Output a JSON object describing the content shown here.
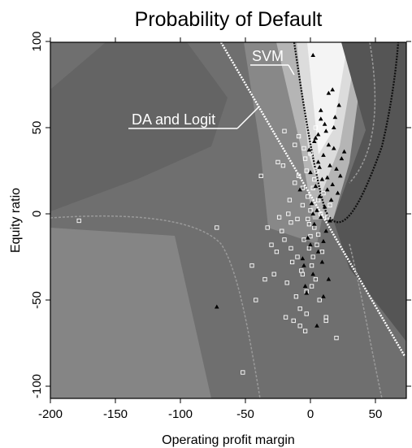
{
  "chart_data": {
    "type": "scatter",
    "title": "Probability of Default",
    "xlabel": "Operating profit margin",
    "ylabel": "Equity ratio",
    "xlim": [
      -200,
      75
    ],
    "ylim": [
      -108,
      100
    ],
    "xticks": [
      "-200",
      "-150",
      "-100",
      "-50",
      "0",
      "50"
    ],
    "yticks": [
      "100",
      "50",
      "0",
      "-50",
      "-100"
    ],
    "grid": false,
    "legend": "none",
    "annotations": [
      {
        "text": "SVM",
        "points_to": [
          8,
          82
        ]
      },
      {
        "text": "DA and Logit",
        "points_to": [
          -38,
          62
        ]
      }
    ],
    "series": [
      {
        "marker": "open-square",
        "color": "#ffffff",
        "values": [
          [
            -178,
            -4
          ],
          [
            -72,
            -8
          ],
          [
            -45,
            -30
          ],
          [
            -42,
            -50
          ],
          [
            -52,
            -92
          ],
          [
            -25,
            30
          ],
          [
            -20,
            48
          ],
          [
            -38,
            22
          ],
          [
            -30,
            -18
          ],
          [
            -28,
            -35
          ],
          [
            -22,
            -10
          ],
          [
            -18,
            -40
          ],
          [
            -15,
            -5
          ],
          [
            -12,
            18
          ],
          [
            -10,
            -25
          ],
          [
            -8,
            -55
          ],
          [
            -6,
            5
          ],
          [
            -5,
            -15
          ],
          [
            -4,
            32
          ],
          [
            -3,
            -45
          ],
          [
            -2,
            10
          ],
          [
            -1,
            -20
          ],
          [
            0,
            2
          ],
          [
            1,
            -30
          ],
          [
            2,
            15
          ],
          [
            3,
            -8
          ],
          [
            4,
            -38
          ],
          [
            5,
            25
          ],
          [
            6,
            -12
          ],
          [
            7,
            -50
          ],
          [
            8,
            0
          ],
          [
            9,
            -22
          ],
          [
            10,
            12
          ],
          [
            12,
            -60
          ],
          [
            13,
            -2
          ],
          [
            -16,
            8
          ],
          [
            -14,
            -28
          ],
          [
            -11,
            -48
          ],
          [
            -9,
            22
          ],
          [
            -7,
            -33
          ],
          [
            -5,
            38
          ],
          [
            -3,
            -58
          ],
          [
            -1,
            -6
          ],
          [
            1,
            -42
          ],
          [
            3,
            20
          ],
          [
            5,
            -18
          ],
          [
            -20,
            -15
          ],
          [
            -24,
            -2
          ],
          [
            -26,
            -22
          ],
          [
            -33,
            -8
          ],
          [
            -35,
            -38
          ],
          [
            -19,
            -60
          ],
          [
            -13,
            -62
          ],
          [
            -8,
            -65
          ],
          [
            -4,
            -68
          ],
          [
            20,
            -72
          ],
          [
            12,
            -62
          ],
          [
            15,
            5
          ],
          [
            6,
            8
          ],
          [
            -2,
            -3
          ],
          [
            0,
            -13
          ],
          [
            2,
            -25
          ],
          [
            -6,
            -35
          ],
          [
            -10,
            -3
          ],
          [
            -15,
            -20
          ],
          [
            -17,
            0
          ],
          [
            -21,
            28
          ],
          [
            -12,
            40
          ],
          [
            -9,
            45
          ],
          [
            -6,
            15
          ],
          [
            -3,
            25
          ],
          [
            0,
            35
          ],
          [
            2,
            42
          ],
          [
            4,
            50
          ]
        ]
      },
      {
        "marker": "filled-triangle",
        "color": "#000000",
        "values": [
          [
            -72,
            -54
          ],
          [
            5,
            -65
          ],
          [
            2,
            92
          ],
          [
            14,
            70
          ],
          [
            17,
            72
          ],
          [
            22,
            63
          ],
          [
            8,
            55
          ],
          [
            12,
            48
          ],
          [
            3,
            42
          ],
          [
            18,
            38
          ],
          [
            10,
            34
          ],
          [
            6,
            30
          ],
          [
            15,
            28
          ],
          [
            20,
            26
          ],
          [
            0,
            24
          ],
          [
            9,
            20
          ],
          [
            4,
            16
          ],
          [
            13,
            14
          ],
          [
            7,
            10
          ],
          [
            16,
            8
          ],
          [
            1,
            6
          ],
          [
            11,
            4
          ],
          [
            5,
            2
          ],
          [
            8,
            -2
          ],
          [
            3,
            -6
          ],
          [
            12,
            -10
          ],
          [
            -2,
            -14
          ],
          [
            6,
            -22
          ],
          [
            9,
            -28
          ],
          [
            2,
            -35
          ],
          [
            -4,
            -42
          ],
          [
            10,
            -48
          ],
          [
            14,
            -38
          ],
          [
            -5,
            -30
          ],
          [
            4,
            44
          ],
          [
            11,
            52
          ],
          [
            19,
            56
          ],
          [
            24,
            32
          ],
          [
            -1,
            37
          ],
          [
            7,
            27
          ],
          [
            13,
            21
          ],
          [
            17,
            17
          ],
          [
            21,
            12
          ],
          [
            2,
            0
          ],
          [
            10,
            -16
          ],
          [
            -6,
            -26
          ],
          [
            15,
            -4
          ],
          [
            23,
            22
          ],
          [
            6,
            46
          ],
          [
            14,
            40
          ],
          [
            26,
            36
          ],
          [
            8,
            60
          ],
          [
            18,
            50
          ],
          [
            -8,
            14
          ],
          [
            -3,
            -46
          ],
          [
            0,
            -18
          ]
        ]
      }
    ]
  }
}
